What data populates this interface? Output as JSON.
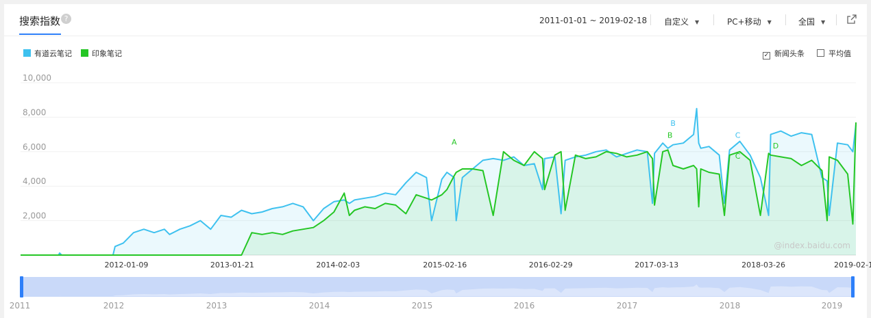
{
  "header": {
    "title": "搜索指数",
    "help_icon": "question-icon",
    "date_range": "2011-01-01 ~ 2019-02-18",
    "custom_label": "自定义",
    "device_label": "PC+移动",
    "region_label": "全国",
    "share_icon": "external-link-icon"
  },
  "legend": {
    "series1": "有道云笔记",
    "series2": "印象笔记"
  },
  "options": {
    "news_label": "新闻头条",
    "news_checked": true,
    "avg_label": "平均值",
    "avg_checked": false
  },
  "colors": {
    "series1": "#3ec1ef",
    "series2": "#24c624",
    "accent": "#2d7ff9"
  },
  "watermark": "@index.baidu.com",
  "chart_data": {
    "type": "line",
    "yticks": [
      "10,000",
      "8,000",
      "6,000",
      "4,000",
      "2,000"
    ],
    "ytick_values": [
      10000,
      8000,
      6000,
      4000,
      2000
    ],
    "ylim": [
      0,
      10000
    ],
    "xlim": [
      2011.0,
      2019.13
    ],
    "xticks": [
      {
        "label": "2012-01-09",
        "t": 2012.03
      },
      {
        "label": "2013-01-21",
        "t": 2013.06
      },
      {
        "label": "2014-02-03",
        "t": 2014.09
      },
      {
        "label": "2015-02-16",
        "t": 2015.13
      },
      {
        "label": "2016-02-29",
        "t": 2016.16
      },
      {
        "label": "2017-03-13",
        "t": 2017.19
      },
      {
        "label": "2018-03-26",
        "t": 2018.23
      },
      {
        "label": "2019-02-18",
        "t": 2019.13
      }
    ],
    "series": [
      {
        "name": "有道云笔记",
        "x": [
          2011.0,
          2011.37,
          2011.38,
          2011.4,
          2011.9,
          2011.92,
          2012.0,
          2012.1,
          2012.2,
          2012.3,
          2012.4,
          2012.45,
          2012.55,
          2012.65,
          2012.75,
          2012.85,
          2012.95,
          2013.05,
          2013.15,
          2013.25,
          2013.35,
          2013.45,
          2013.55,
          2013.65,
          2013.75,
          2013.85,
          2013.95,
          2014.05,
          2014.15,
          2014.2,
          2014.25,
          2014.35,
          2014.45,
          2014.55,
          2014.65,
          2014.75,
          2014.85,
          2014.95,
          2015.0,
          2015.1,
          2015.15,
          2015.22,
          2015.24,
          2015.3,
          2015.4,
          2015.5,
          2015.6,
          2015.7,
          2015.8,
          2015.9,
          2016.0,
          2016.08,
          2016.1,
          2016.2,
          2016.26,
          2016.3,
          2016.4,
          2016.5,
          2016.6,
          2016.7,
          2016.8,
          2016.9,
          2017.0,
          2017.1,
          2017.15,
          2017.17,
          2017.25,
          2017.3,
          2017.35,
          2017.45,
          2017.55,
          2017.58,
          2017.6,
          2017.62,
          2017.7,
          2017.8,
          2017.85,
          2017.9,
          2018.0,
          2018.1,
          2018.2,
          2018.28,
          2018.3,
          2018.4,
          2018.5,
          2018.6,
          2018.7,
          2018.8,
          2018.85,
          2018.87,
          2018.95,
          2019.05,
          2019.1,
          2019.13
        ],
        "y": [
          0,
          0,
          120,
          0,
          0,
          500,
          700,
          1300,
          1500,
          1300,
          1500,
          1200,
          1500,
          1700,
          2000,
          1500,
          2300,
          2200,
          2600,
          2400,
          2500,
          2700,
          2800,
          3000,
          2800,
          2000,
          2700,
          3100,
          3200,
          3000,
          3200,
          3300,
          3400,
          3600,
          3500,
          4200,
          4800,
          4500,
          2000,
          4400,
          4800,
          4500,
          2000,
          4500,
          5000,
          5500,
          5600,
          5500,
          5700,
          5200,
          5300,
          3800,
          5600,
          5700,
          2400,
          5500,
          5700,
          5800,
          6000,
          6100,
          5700,
          5900,
          6100,
          6000,
          3000,
          5900,
          6500,
          6200,
          6400,
          6500,
          7000,
          8500,
          6500,
          6200,
          6300,
          5800,
          3000,
          6100,
          6600,
          5800,
          4500,
          2300,
          7000,
          7200,
          6900,
          7100,
          7000,
          4500,
          4300,
          2300,
          6500,
          6400,
          6000,
          7600
        ]
      },
      {
        "name": "印象笔记",
        "x": [
          2011.0,
          2011.5,
          2011.52,
          2011.55,
          2011.6,
          2011.8,
          2012.0,
          2012.2,
          2012.3,
          2012.4,
          2012.45,
          2012.55,
          2012.65,
          2012.7,
          2012.75,
          2012.85,
          2012.9,
          2012.95,
          2013.05,
          2013.15,
          2013.25,
          2013.35,
          2013.45,
          2013.55,
          2013.65,
          2013.75,
          2013.85,
          2013.95,
          2014.05,
          2014.15,
          2014.2,
          2014.25,
          2014.35,
          2014.45,
          2014.55,
          2014.65,
          2014.75,
          2014.85,
          2014.95,
          2015.0,
          2015.1,
          2015.15,
          2015.22,
          2015.24,
          2015.3,
          2015.4,
          2015.5,
          2015.6,
          2015.7,
          2015.8,
          2015.9,
          2016.0,
          2016.08,
          2016.1,
          2016.2,
          2016.26,
          2016.3,
          2016.4,
          2016.5,
          2016.6,
          2016.7,
          2016.8,
          2016.9,
          2017.0,
          2017.1,
          2017.15,
          2017.17,
          2017.25,
          2017.3,
          2017.35,
          2017.45,
          2017.55,
          2017.58,
          2017.6,
          2017.62,
          2017.7,
          2017.8,
          2017.85,
          2017.9,
          2018.0,
          2018.1,
          2018.2,
          2018.28,
          2018.3,
          2018.4,
          2018.5,
          2018.6,
          2018.7,
          2018.8,
          2018.85,
          2018.87,
          2018.95,
          2019.05,
          2019.1,
          2019.13
        ],
        "y": [
          0,
          0,
          0,
          0,
          0,
          0,
          0,
          0,
          0,
          0,
          0,
          0,
          0,
          0,
          0,
          0,
          0,
          0,
          0,
          0,
          1300,
          1200,
          1300,
          1200,
          1400,
          1500,
          1600,
          2000,
          2500,
          3600,
          2300,
          2600,
          2800,
          2700,
          3000,
          2900,
          2400,
          3500,
          3300,
          3200,
          3500,
          3800,
          4600,
          4800,
          5000,
          5000,
          4900,
          2300,
          6000,
          5500,
          5200,
          6000,
          5600,
          3800,
          5800,
          6000,
          2600,
          5800,
          5600,
          5700,
          6000,
          5900,
          5700,
          5800,
          6000,
          5600,
          2900,
          6000,
          6100,
          5200,
          5000,
          5200,
          5000,
          2800,
          5000,
          4800,
          4700,
          2300,
          5800,
          6000,
          5500,
          2300,
          5900,
          5800,
          5700,
          5600,
          5200,
          5500,
          4900,
          2000,
          5700,
          5500,
          4700,
          1800,
          7700
        ]
      }
    ],
    "annotations": [
      {
        "label": "A",
        "series": "印象笔记",
        "t": 2015.22,
        "v": 6400
      },
      {
        "label": "B",
        "series": "有道云笔记",
        "t": 2017.35,
        "v": 7500
      },
      {
        "label": "B",
        "series": "印象笔记",
        "t": 2017.32,
        "v": 6800
      },
      {
        "label": "C",
        "series": "有道云笔记",
        "t": 2017.98,
        "v": 6800
      },
      {
        "label": "C",
        "series": "印象笔记",
        "t": 2017.98,
        "v": 5600
      },
      {
        "label": "D",
        "series": "印象笔记",
        "t": 2018.35,
        "v": 6200
      }
    ],
    "navigator_labels": [
      "2011",
      "2012",
      "2013",
      "2014",
      "2015",
      "2016",
      "2017",
      "2018",
      "2019"
    ]
  }
}
